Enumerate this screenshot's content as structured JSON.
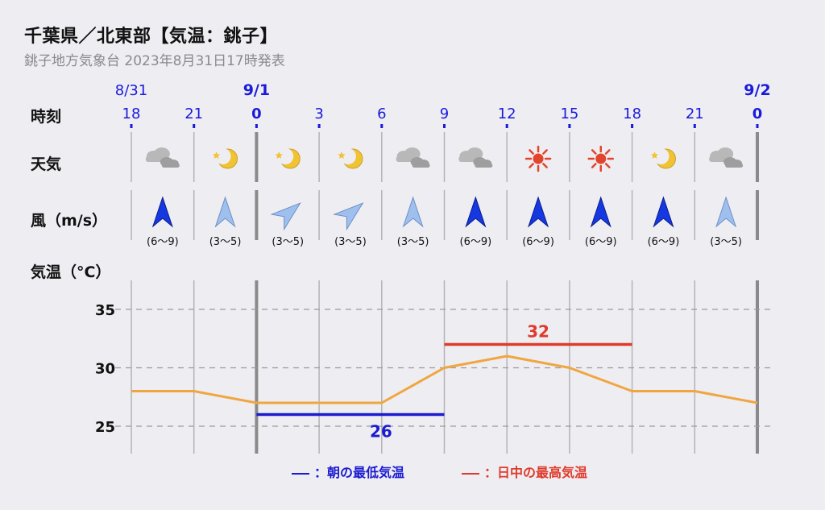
{
  "title": "千葉県／北東部【気温：銚子】",
  "subtitle": "銚子地方気象台 2023年8月31日17時発表",
  "row_labels": {
    "time": "時刻",
    "weather": "天気",
    "wind": "風（m/s）",
    "temp": "気温（°C）"
  },
  "colors": {
    "date_blue": "#1a1adb",
    "min_line": "#1b1bd0",
    "max_line": "#e03a2a",
    "temp_line": "#f0a640",
    "grid": "#888888"
  },
  "chart_data": {
    "type": "line",
    "dates": [
      {
        "label": "8/31",
        "x": "18"
      },
      {
        "label": "9/1",
        "x": "0"
      },
      {
        "label": "9/2",
        "x": "0"
      }
    ],
    "x": [
      "18",
      "21",
      "0",
      "3",
      "6",
      "9",
      "12",
      "15",
      "18",
      "21",
      "0"
    ],
    "day_boundary_index": [
      2,
      10
    ],
    "series": [
      {
        "values": [
          28,
          28,
          27,
          27,
          27,
          30,
          31,
          30,
          28,
          28,
          27
        ]
      }
    ],
    "min_temp": {
      "value": 26,
      "from_index": 2,
      "to_index": 5
    },
    "max_temp": {
      "value": 32,
      "from_index": 5,
      "to_index": 8
    },
    "yticks": [
      25,
      30,
      35
    ],
    "ylim": [
      23,
      37
    ],
    "grid": true,
    "weather": [
      "cloudy",
      "moon",
      "moon",
      "moon",
      "cloudy",
      "cloudy",
      "sunny",
      "sunny",
      "moon",
      "cloudy"
    ],
    "wind": [
      {
        "dir": 0,
        "speed": "(6〜9)",
        "strong": true
      },
      {
        "dir": 0,
        "speed": "(3〜5)",
        "strong": false
      },
      {
        "dir": 45,
        "speed": "(3〜5)",
        "strong": false
      },
      {
        "dir": 45,
        "speed": "(3〜5)",
        "strong": false
      },
      {
        "dir": 0,
        "speed": "(3〜5)",
        "strong": false
      },
      {
        "dir": 0,
        "speed": "(6〜9)",
        "strong": true
      },
      {
        "dir": 0,
        "speed": "(6〜9)",
        "strong": true
      },
      {
        "dir": 0,
        "speed": "(6〜9)",
        "strong": true
      },
      {
        "dir": 0,
        "speed": "(6〜9)",
        "strong": true
      },
      {
        "dir": 0,
        "speed": "(3〜5)",
        "strong": false
      }
    ]
  },
  "legend": {
    "min": "：朝の最低気温",
    "max": "：日中の最高気温"
  }
}
